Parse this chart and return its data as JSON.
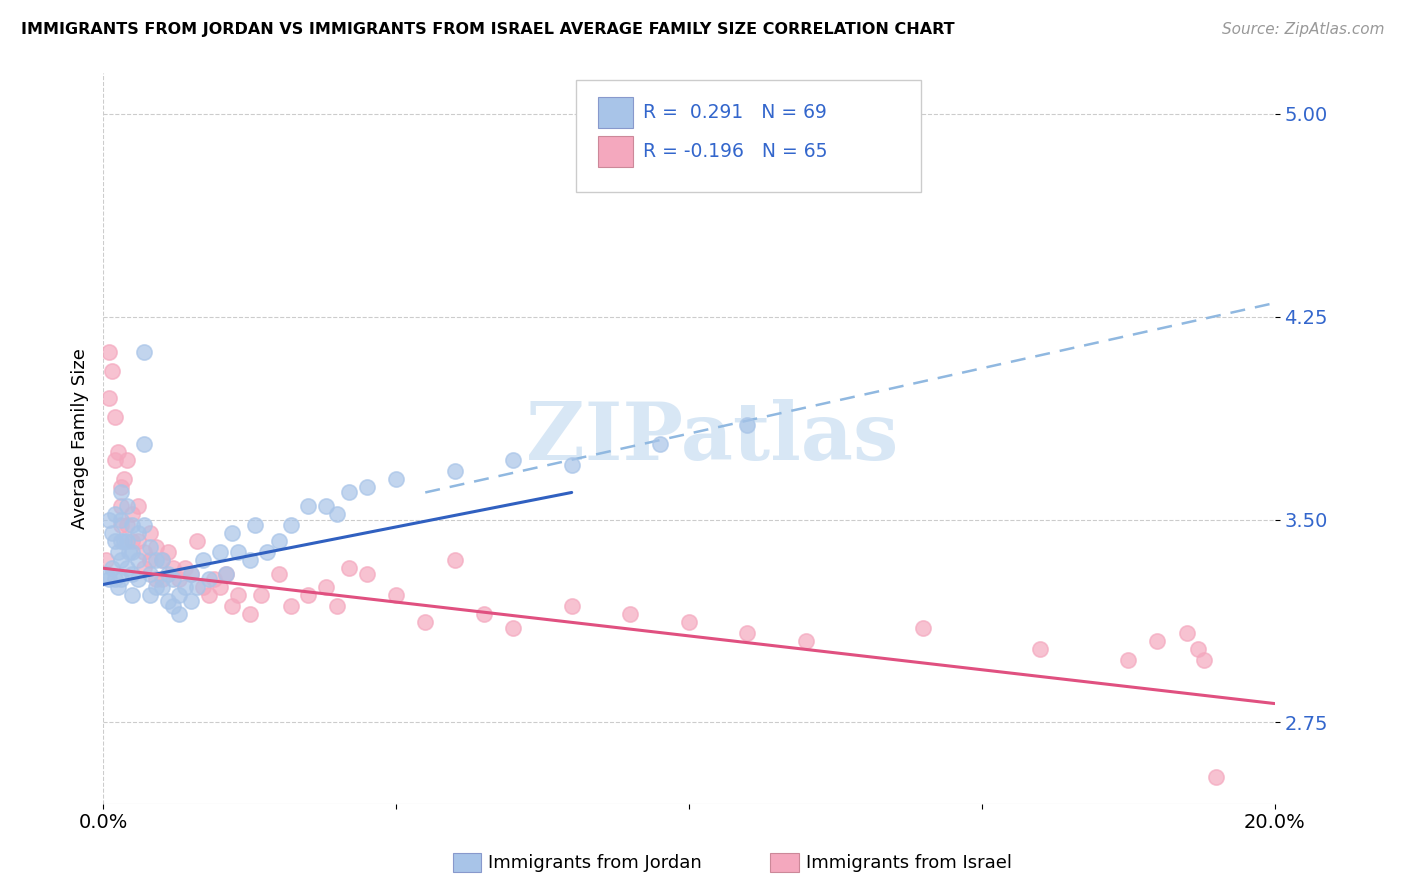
{
  "title": "IMMIGRANTS FROM JORDAN VS IMMIGRANTS FROM ISRAEL AVERAGE FAMILY SIZE CORRELATION CHART",
  "source": "Source: ZipAtlas.com",
  "ylabel": "Average Family Size",
  "xlim": [
    0.0,
    0.2
  ],
  "ylim": [
    2.45,
    5.15
  ],
  "yticks": [
    2.75,
    3.5,
    4.25,
    5.0
  ],
  "xtick_vals": [
    0.0,
    0.05,
    0.1,
    0.15,
    0.2
  ],
  "xticklabels": [
    "0.0%",
    "",
    "",
    "",
    "20.0%"
  ],
  "jordan_R": 0.291,
  "jordan_N": 69,
  "israel_R": -0.196,
  "israel_N": 65,
  "jordan_color": "#a8c4e8",
  "israel_color": "#f4a8be",
  "jordan_line_color": "#3060c0",
  "israel_line_color": "#e05080",
  "dashed_line_color": "#90b8e0",
  "watermark": "ZIPatlas",
  "jordan_points_x": [
    0.0005,
    0.001,
    0.001,
    0.0015,
    0.0015,
    0.002,
    0.002,
    0.002,
    0.0025,
    0.0025,
    0.003,
    0.003,
    0.003,
    0.003,
    0.003,
    0.0035,
    0.004,
    0.004,
    0.004,
    0.0045,
    0.005,
    0.005,
    0.005,
    0.005,
    0.006,
    0.006,
    0.006,
    0.007,
    0.007,
    0.007,
    0.008,
    0.008,
    0.008,
    0.009,
    0.009,
    0.01,
    0.01,
    0.011,
    0.011,
    0.012,
    0.012,
    0.013,
    0.013,
    0.014,
    0.015,
    0.015,
    0.016,
    0.017,
    0.018,
    0.02,
    0.021,
    0.022,
    0.023,
    0.025,
    0.026,
    0.028,
    0.03,
    0.032,
    0.035,
    0.038,
    0.04,
    0.042,
    0.045,
    0.05,
    0.06,
    0.07,
    0.08,
    0.095,
    0.11
  ],
  "jordan_points_y": [
    3.3,
    3.5,
    3.28,
    3.45,
    3.32,
    3.52,
    3.42,
    3.28,
    3.38,
    3.25,
    3.6,
    3.5,
    3.42,
    3.35,
    3.28,
    3.42,
    3.55,
    3.42,
    3.32,
    3.38,
    3.48,
    3.38,
    3.3,
    3.22,
    3.45,
    3.35,
    3.28,
    4.12,
    3.78,
    3.48,
    3.4,
    3.3,
    3.22,
    3.35,
    3.25,
    3.35,
    3.25,
    3.3,
    3.2,
    3.28,
    3.18,
    3.22,
    3.15,
    3.25,
    3.3,
    3.2,
    3.25,
    3.35,
    3.28,
    3.38,
    3.3,
    3.45,
    3.38,
    3.35,
    3.48,
    3.38,
    3.42,
    3.48,
    3.55,
    3.55,
    3.52,
    3.6,
    3.62,
    3.65,
    3.68,
    3.72,
    3.7,
    3.78,
    3.85
  ],
  "israel_points_x": [
    0.0005,
    0.001,
    0.001,
    0.0015,
    0.002,
    0.002,
    0.0025,
    0.003,
    0.003,
    0.003,
    0.0035,
    0.004,
    0.004,
    0.005,
    0.005,
    0.006,
    0.006,
    0.007,
    0.007,
    0.008,
    0.008,
    0.009,
    0.009,
    0.01,
    0.01,
    0.011,
    0.012,
    0.013,
    0.014,
    0.015,
    0.016,
    0.017,
    0.018,
    0.019,
    0.02,
    0.021,
    0.022,
    0.023,
    0.025,
    0.027,
    0.03,
    0.032,
    0.035,
    0.038,
    0.04,
    0.042,
    0.045,
    0.05,
    0.055,
    0.06,
    0.065,
    0.07,
    0.08,
    0.09,
    0.1,
    0.11,
    0.12,
    0.14,
    0.16,
    0.175,
    0.18,
    0.185,
    0.187,
    0.188,
    0.19
  ],
  "israel_points_y": [
    3.35,
    4.12,
    3.95,
    4.05,
    3.88,
    3.72,
    3.75,
    3.62,
    3.55,
    3.48,
    3.65,
    3.72,
    3.48,
    3.52,
    3.42,
    3.55,
    3.42,
    3.38,
    3.32,
    3.45,
    3.35,
    3.4,
    3.28,
    3.35,
    3.28,
    3.38,
    3.32,
    3.28,
    3.32,
    3.3,
    3.42,
    3.25,
    3.22,
    3.28,
    3.25,
    3.3,
    3.18,
    3.22,
    3.15,
    3.22,
    3.3,
    3.18,
    3.22,
    3.25,
    3.18,
    3.32,
    3.3,
    3.22,
    3.12,
    3.35,
    3.15,
    3.1,
    3.18,
    3.15,
    3.12,
    3.08,
    3.05,
    3.1,
    3.02,
    2.98,
    3.05,
    3.08,
    3.02,
    2.98,
    2.55
  ],
  "jordan_line_x0": 0.0,
  "jordan_line_y0": 3.26,
  "jordan_line_x1": 0.08,
  "jordan_line_y1": 3.6,
  "israel_line_x0": 0.0,
  "israel_line_y0": 3.32,
  "israel_line_x1": 0.2,
  "israel_line_y1": 2.82,
  "dashed_line_x0": 0.055,
  "dashed_line_y0": 3.6,
  "dashed_line_x1": 0.2,
  "dashed_line_y1": 4.3
}
